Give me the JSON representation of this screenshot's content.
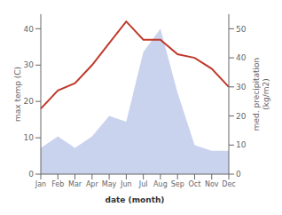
{
  "chart_data": {
    "type": "line",
    "xlabel": "date (month)",
    "ylabel": "max temp (C)",
    "y2label": "med. precipitation\n(kg/m2)",
    "categories": [
      "Jan",
      "Feb",
      "Mar",
      "Apr",
      "May",
      "Jun",
      "Jul",
      "Aug",
      "Sep",
      "Oct",
      "Nov",
      "Dec"
    ],
    "series": [
      {
        "type": "area",
        "color": "#b8c4e8",
        "axis": "y2",
        "values": [
          9,
          13,
          9,
          13,
          20,
          18,
          42,
          50,
          28,
          10,
          8,
          8
        ]
      },
      {
        "type": "line",
        "color": "#c0392b",
        "values": [
          18,
          23,
          25,
          30,
          36,
          42,
          37,
          37,
          33,
          32,
          29,
          24
        ]
      }
    ],
    "ylim": [
      0,
      44
    ],
    "yticks": [
      0,
      10,
      20,
      30,
      40
    ],
    "y2lim": [
      0,
      55
    ],
    "y2ticks": [
      0,
      10,
      20,
      30,
      40,
      50
    ]
  }
}
